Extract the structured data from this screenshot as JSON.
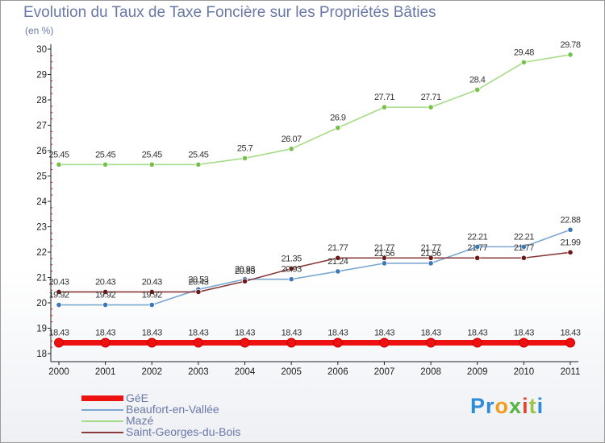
{
  "title": "Evolution du Taux de Taxe Foncière sur les Propriétés Bâties",
  "unit_label": "(en %)",
  "chart_data": {
    "type": "line",
    "title": "Evolution du Taux de Taxe Foncière sur les Propriétés Bâties",
    "ylabel": "(en %)",
    "xlabel": "",
    "x": [
      "2000",
      "2001",
      "2002",
      "2003",
      "2004",
      "2005",
      "2006",
      "2007",
      "2008",
      "2009",
      "2010",
      "2011"
    ],
    "ylim": [
      18,
      30
    ],
    "yticks": [
      18,
      19,
      20,
      21,
      22,
      23,
      24,
      25,
      26,
      27,
      28,
      29,
      30
    ],
    "ytick_labels": [
      "18",
      "19",
      "20",
      "21",
      "22",
      "23",
      "24",
      "25",
      "26",
      "27",
      "28",
      "29",
      "30"
    ],
    "grid": false,
    "legend_position": "bottom-left",
    "series": [
      {
        "name": "GéE",
        "color": "#ee1111",
        "values": [
          18.43,
          18.43,
          18.43,
          18.43,
          18.43,
          18.43,
          18.43,
          18.43,
          18.43,
          18.43,
          18.43,
          18.43
        ],
        "labels": [
          "18.43",
          "18.43",
          "18.43",
          "18.43",
          "18.43",
          "18.43",
          "18.43",
          "18.43",
          "18.43",
          "18.43",
          "18.43",
          "18.43"
        ]
      },
      {
        "name": "Beaufort-en-Vallée",
        "color": "#7ba7d0",
        "marker_color": "#3c78b8",
        "values": [
          19.92,
          19.92,
          19.92,
          20.53,
          20.93,
          20.93,
          21.24,
          21.56,
          21.56,
          22.21,
          22.21,
          22.88
        ],
        "labels": [
          "19.92",
          "19.92",
          "19.92",
          "20.53",
          "20.93",
          "20.93",
          "21.24",
          "21.56",
          "21.56",
          "22.21",
          "22.21",
          "22.88"
        ]
      },
      {
        "name": "Mazé",
        "color": "#a6dc88",
        "marker_color": "#77c04a",
        "values": [
          25.45,
          25.45,
          25.45,
          25.45,
          25.7,
          26.07,
          26.9,
          27.71,
          27.71,
          28.4,
          29.48,
          29.78
        ],
        "labels": [
          "25.45",
          "25.45",
          "25.45",
          "25.45",
          "25.7",
          "26.07",
          "26.9",
          "27.71",
          "27.71",
          "28.4",
          "29.48",
          "29.78"
        ]
      },
      {
        "name": "Saint-Georges-du-Bois",
        "color": "#8a3a3a",
        "marker_color": "#6a1818",
        "values": [
          20.43,
          20.43,
          20.43,
          20.43,
          20.85,
          21.35,
          21.77,
          21.77,
          21.77,
          21.77,
          21.77,
          21.99
        ],
        "labels": [
          "20.43",
          "20.43",
          "20.43",
          "20.43",
          "20.85",
          "21.35",
          "21.77",
          "21.77",
          "21.77",
          "21.77",
          "21.77",
          "21.99"
        ]
      }
    ]
  },
  "legend": [
    {
      "label": "GéE",
      "color": "#ee1111"
    },
    {
      "label": "Beaufort-en-Vallée",
      "color": "#7ba7d0"
    },
    {
      "label": "Mazé",
      "color": "#a6dc88"
    },
    {
      "label": "Saint-Georges-du-Bois",
      "color": "#8a3a3a"
    }
  ],
  "logo": {
    "p1": "Pr",
    "p2": "o",
    "p3": "x",
    "p4": "i",
    "p5": "t",
    "p6": "i"
  }
}
